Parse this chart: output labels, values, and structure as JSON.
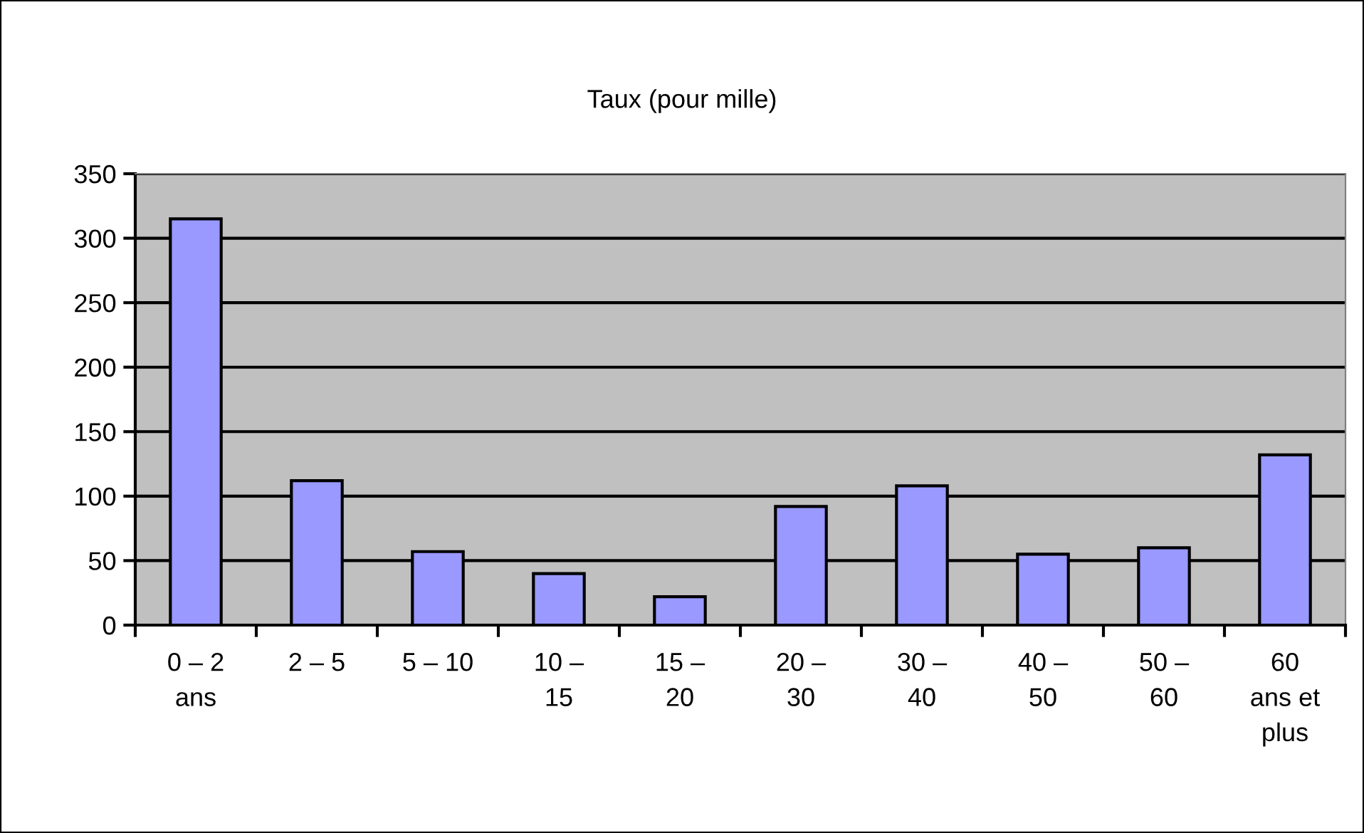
{
  "chart_data": {
    "type": "bar",
    "title": "Taux (pour mille)",
    "categories": [
      "0 – 2\nans",
      "2 – 5",
      "5 – 10",
      "10 –\n15",
      "15 –\n20",
      "20 –\n30",
      "30 –\n40",
      "40 –\n50",
      "50 –\n60",
      "60\nans et\nplus"
    ],
    "values": [
      315,
      112,
      57,
      40,
      22,
      92,
      108,
      55,
      60,
      132
    ],
    "color": "#9999ff",
    "ylim": [
      0,
      350
    ],
    "yticks": [
      0,
      50,
      100,
      150,
      200,
      250,
      300,
      350
    ],
    "grid": "y",
    "legend": false
  }
}
